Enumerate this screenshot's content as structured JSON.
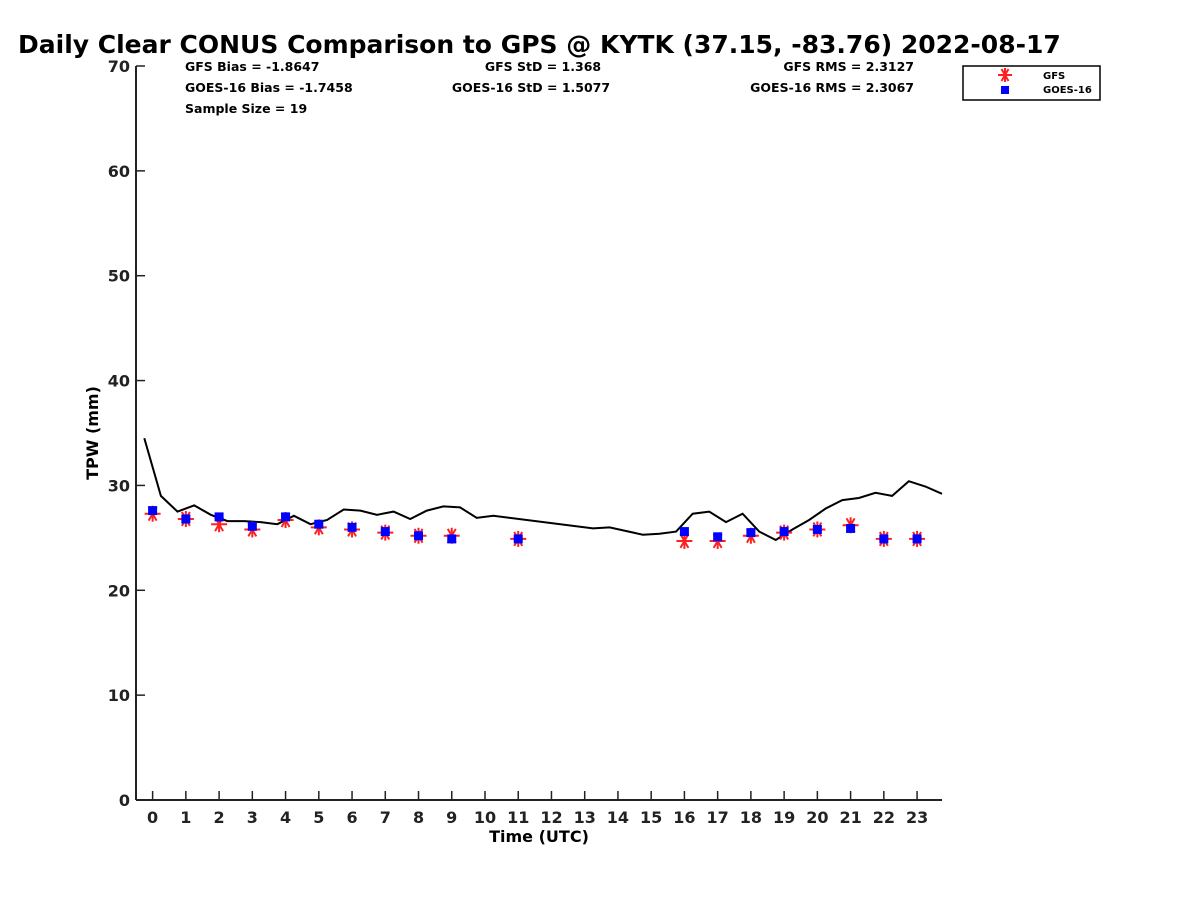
{
  "colors": {
    "gfs": "#ff2020",
    "goes16": "#0000ff",
    "gps": "#000000"
  },
  "stats": {
    "gfs_bias": "GFS Bias = -1.8647",
    "goes_bias": "GOES-16 Bias = -1.7458",
    "sample_size": "Sample Size = 19",
    "gfs_std": "GFS StD = 1.368",
    "goes_std": "GOES-16 StD = 1.5077",
    "gfs_rms": "GFS RMS = 2.3127",
    "goes_rms": "GOES-16 RMS = 2.3067"
  },
  "chart_data": {
    "type": "scatter",
    "title": "Daily Clear CONUS Comparison to GPS @ KYTK (37.15, -83.76) 2022-08-17",
    "xlabel": "Time (UTC)",
    "ylabel": "TPW (mm)",
    "xlim": [
      -0.5,
      23.75
    ],
    "ylim": [
      0,
      70
    ],
    "x_ticks": [
      "0",
      "1",
      "2",
      "3",
      "4",
      "5",
      "6",
      "7",
      "8",
      "9",
      "10",
      "11",
      "12",
      "13",
      "14",
      "15",
      "16",
      "17",
      "18",
      "19",
      "20",
      "21",
      "22",
      "23"
    ],
    "y_ticks": [
      "0",
      "10",
      "20",
      "30",
      "40",
      "50",
      "60",
      "70"
    ],
    "legend": {
      "position": "top-right",
      "entries": [
        "GFS",
        "GOES-16"
      ]
    },
    "gps_line": {
      "x": [
        -0.25,
        0.25,
        0.75,
        1.25,
        1.75,
        2.25,
        2.75,
        3.25,
        3.75,
        4.25,
        4.75,
        5.25,
        5.75,
        6.25,
        6.75,
        7.25,
        7.75,
        8.25,
        8.75,
        9.25,
        9.75,
        10.25,
        13.25,
        13.75,
        14.75,
        15.25,
        15.75,
        16.25,
        16.75,
        17.25,
        17.75,
        18.25,
        18.75,
        19.25,
        19.75,
        20.25,
        20.75,
        21.25,
        21.75,
        22.25,
        22.75,
        23.25,
        23.75
      ],
      "y": [
        34.5,
        29.0,
        27.5,
        28.1,
        27.2,
        26.6,
        26.6,
        26.5,
        26.3,
        27.1,
        26.3,
        26.7,
        27.7,
        27.6,
        27.2,
        27.5,
        26.8,
        27.6,
        28.0,
        27.9,
        26.9,
        27.1,
        25.9,
        26.0,
        25.3,
        25.4,
        25.6,
        27.3,
        27.5,
        26.5,
        27.3,
        25.6,
        24.8,
        25.8,
        26.7,
        27.8,
        28.6,
        28.8,
        29.3,
        29.0,
        30.4,
        29.9,
        29.2
      ]
    },
    "series": [
      {
        "name": "GFS",
        "x": [
          0,
          1,
          2,
          3,
          4,
          5,
          6,
          7,
          8,
          9,
          11,
          16,
          17,
          18,
          19,
          20,
          21,
          22,
          23
        ],
        "y": [
          27.3,
          26.8,
          26.3,
          25.8,
          26.7,
          26.0,
          25.8,
          25.5,
          25.2,
          25.2,
          24.9,
          24.7,
          24.7,
          25.2,
          25.5,
          25.8,
          26.2,
          24.9,
          24.9
        ]
      },
      {
        "name": "GOES-16",
        "x": [
          0,
          1,
          2,
          3,
          4,
          5,
          6,
          7,
          8,
          9,
          11,
          16,
          17,
          18,
          19,
          20,
          21,
          22,
          23
        ],
        "y": [
          27.6,
          26.8,
          27.0,
          26.1,
          27.0,
          26.3,
          26.0,
          25.6,
          25.2,
          24.9,
          24.9,
          25.6,
          25.1,
          25.5,
          25.6,
          25.8,
          25.9,
          24.9,
          24.9
        ]
      }
    ]
  }
}
